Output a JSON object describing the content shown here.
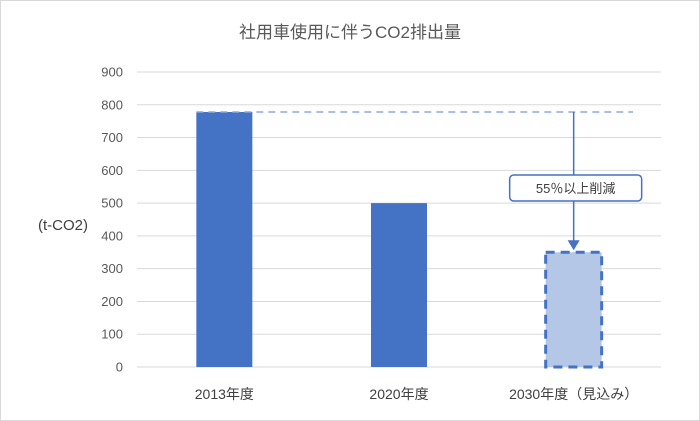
{
  "chart_data": {
    "type": "bar",
    "title": "社用車使用に伴うCO2排出量",
    "ylabel": "(t-CO2)",
    "xlabel": "",
    "categories": [
      "2013年度",
      "2020年度",
      "2030年度（見込み）"
    ],
    "values": [
      778,
      500,
      350
    ],
    "projected": [
      false,
      false,
      true
    ],
    "ylim": [
      0,
      900
    ],
    "yticks": [
      0,
      100,
      200,
      300,
      400,
      500,
      600,
      700,
      800,
      900
    ],
    "grid": true,
    "legend": "none",
    "reference_line": {
      "value": 778
    },
    "annotation": {
      "text": "55％以上削減",
      "target_category": "2030年度（見込み）"
    },
    "colors": {
      "bar": "#4472c4",
      "projected_fill": "#b4c7e7",
      "projected_border": "#4472c4",
      "reference_line": "#8faadc",
      "grid": "#d9d9d9",
      "axis": "#d9d9d9"
    }
  }
}
